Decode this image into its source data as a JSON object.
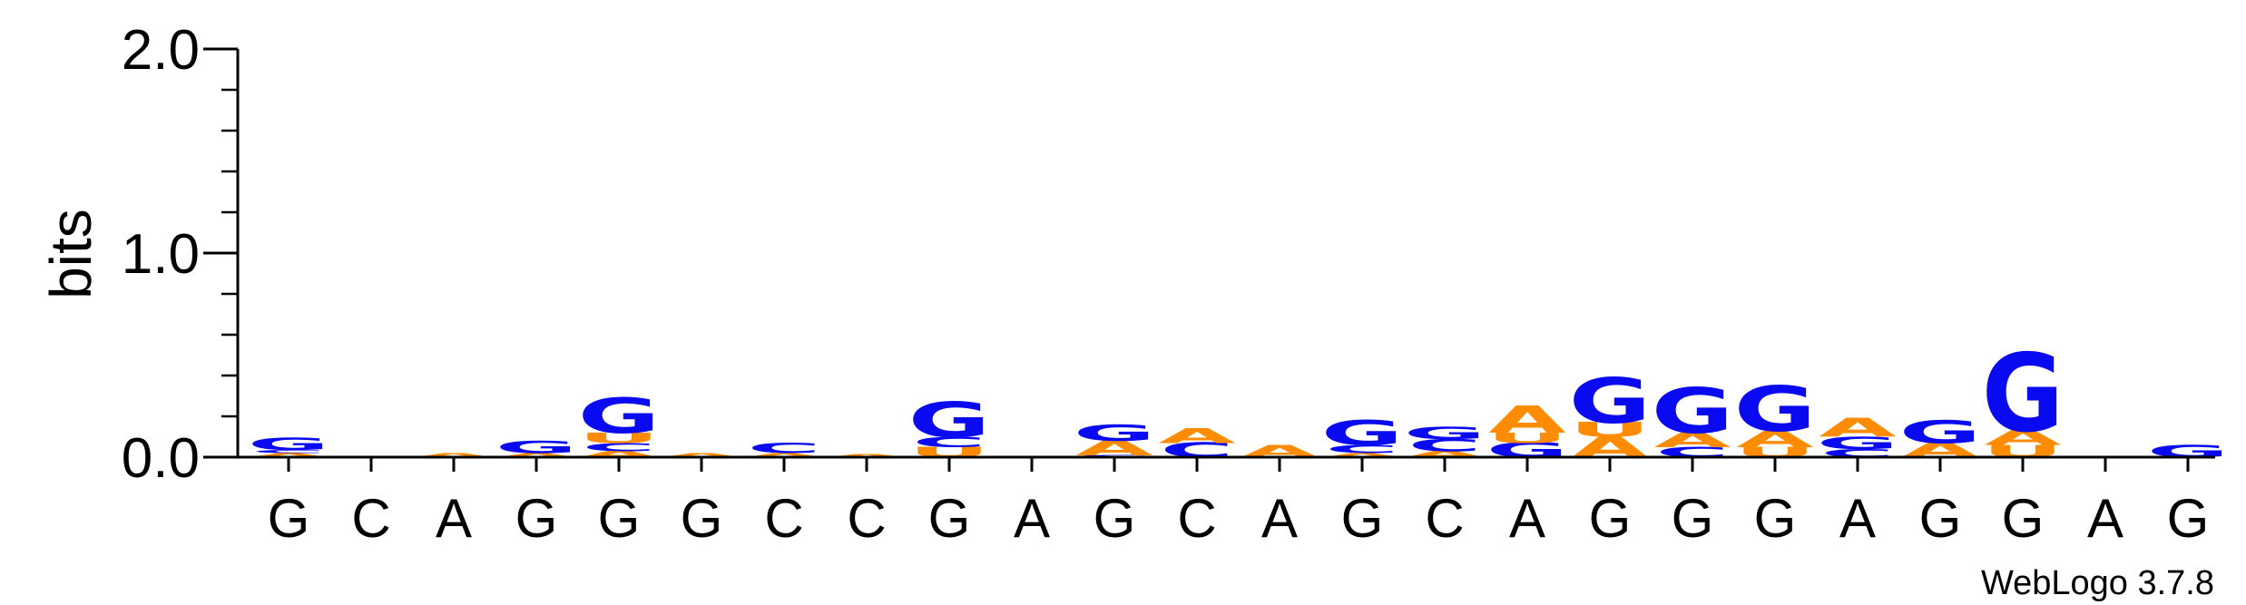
{
  "chart_data": {
    "type": "sequence_logo",
    "ylabel": "bits",
    "ylim": [
      0,
      2.0
    ],
    "yticks": [
      "0.0",
      "1.0",
      "2.0"
    ],
    "positions": [
      "G",
      "C",
      "A",
      "G",
      "G",
      "G",
      "C",
      "C",
      "G",
      "A",
      "G",
      "C",
      "A",
      "G",
      "C",
      "A",
      "G",
      "G",
      "G",
      "A",
      "G",
      "G",
      "A",
      "G"
    ],
    "colors": {
      "G": "#0a0af0",
      "C": "#0a0af0",
      "A": "#ff8c00",
      "U": "#ff8c00"
    },
    "stacks": [
      [
        {
          "l": "A",
          "h": 0.02
        },
        {
          "l": "C",
          "h": 0.015
        },
        {
          "l": "G",
          "h": 0.06
        }
      ],
      [],
      [
        {
          "l": "A",
          "h": 0.02
        }
      ],
      [
        {
          "l": "A",
          "h": 0.02
        },
        {
          "l": "G",
          "h": 0.06
        }
      ],
      [
        {
          "l": "A",
          "h": 0.03
        },
        {
          "l": "C",
          "h": 0.04
        },
        {
          "l": "U",
          "h": 0.05
        },
        {
          "l": "G",
          "h": 0.17
        }
      ],
      [
        {
          "l": "A",
          "h": 0.02
        }
      ],
      [
        {
          "l": "A",
          "h": 0.02
        },
        {
          "l": "C",
          "h": 0.05
        }
      ],
      [
        {
          "l": "A",
          "h": 0.015
        }
      ],
      [
        {
          "l": "U",
          "h": 0.05
        },
        {
          "l": "C",
          "h": 0.05
        },
        {
          "l": "G",
          "h": 0.17
        }
      ],
      [],
      [
        {
          "l": "C",
          "h": 0.01
        },
        {
          "l": "A",
          "h": 0.07
        },
        {
          "l": "G",
          "h": 0.08
        }
      ],
      [
        {
          "l": "C",
          "h": 0.07
        },
        {
          "l": "A",
          "h": 0.07
        }
      ],
      [
        {
          "l": "A",
          "h": 0.06
        }
      ],
      [
        {
          "l": "A",
          "h": 0.02
        },
        {
          "l": "C",
          "h": 0.04
        },
        {
          "l": "G",
          "h": 0.12
        }
      ],
      [
        {
          "l": "A",
          "h": 0.03
        },
        {
          "l": "C",
          "h": 0.06
        },
        {
          "l": "G",
          "h": 0.06
        }
      ],
      [
        {
          "l": "G",
          "h": 0.07
        },
        {
          "l": "U",
          "h": 0.05
        },
        {
          "l": "A",
          "h": 0.13
        }
      ],
      [
        {
          "l": "A",
          "h": 0.1
        },
        {
          "l": "U",
          "h": 0.07
        },
        {
          "l": "G",
          "h": 0.22
        }
      ],
      [
        {
          "l": "C",
          "h": 0.05
        },
        {
          "l": "A",
          "h": 0.07
        },
        {
          "l": "G",
          "h": 0.22
        }
      ],
      [
        {
          "l": "U",
          "h": 0.05
        },
        {
          "l": "A",
          "h": 0.08
        },
        {
          "l": "G",
          "h": 0.22
        }
      ],
      [
        {
          "l": "C",
          "h": 0.04
        },
        {
          "l": "G",
          "h": 0.06
        },
        {
          "l": "A",
          "h": 0.09
        }
      ],
      [
        {
          "l": "A",
          "h": 0.07
        },
        {
          "l": "G",
          "h": 0.11
        }
      ],
      [
        {
          "l": "U",
          "h": 0.06
        },
        {
          "l": "A",
          "h": 0.07
        },
        {
          "l": "G",
          "h": 0.38
        }
      ],
      [],
      [
        {
          "l": "G",
          "h": 0.06
        }
      ]
    ]
  },
  "credit": "WebLogo 3.7.8"
}
